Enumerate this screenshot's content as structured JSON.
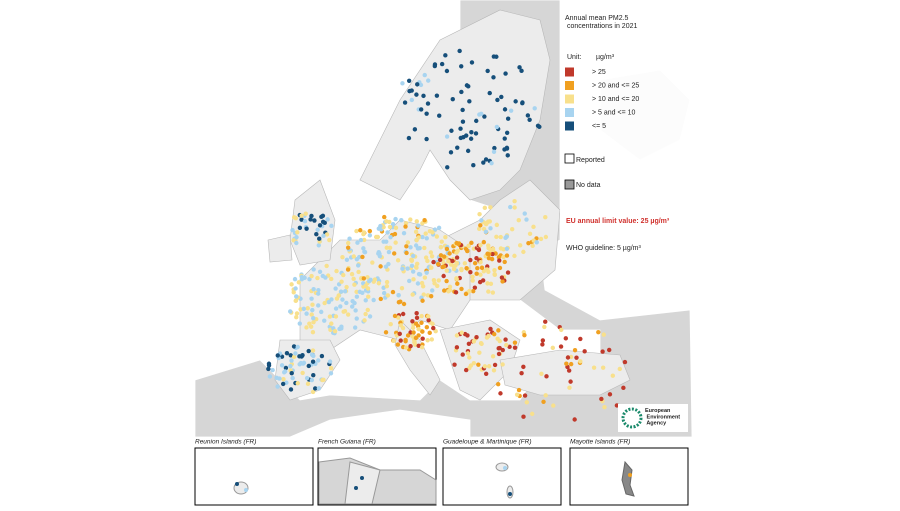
{
  "legend": {
    "title": "Annual mean PM2.5 concentrations in 2021",
    "unit_label": "Unit:",
    "unit": "µg/m³",
    "items": [
      {
        "label": "> 25",
        "color": "#c0392b"
      },
      {
        "label": "> 20 and <= 25",
        "color": "#f0a020"
      },
      {
        "label": "> 10 and <= 20",
        "color": "#f8e08c"
      },
      {
        "label": "> 5 and <= 10",
        "color": "#a8d4f0"
      },
      {
        "label": "<= 5",
        "color": "#164f7a"
      }
    ],
    "reported": "Reported",
    "no_data": "No data",
    "eu_limit": "EU annual limit value:  25 µg/m³",
    "who_guideline": "WHO guideline:  5 µg/m³"
  },
  "logo": "European Environment Agency",
  "insets": [
    "Reunion Islands (FR)",
    "French Guiana (FR)",
    "Guadeloupe & Martinique (FR)",
    "Mayotte Islands (FR)"
  ]
}
